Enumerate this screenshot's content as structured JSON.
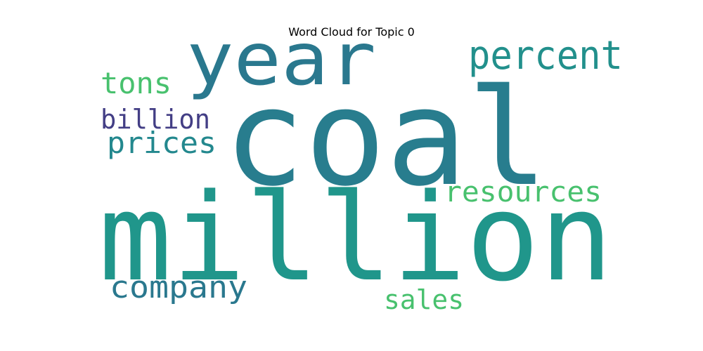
{
  "chart_data": {
    "type": "wordcloud",
    "title": "Word Cloud for Topic 0",
    "background": "#ffffff",
    "words": [
      {
        "text": "coal",
        "color": "#287d8e"
      },
      {
        "text": "million",
        "color": "#20968b"
      },
      {
        "text": "year",
        "color": "#2a788e"
      },
      {
        "text": "percent",
        "color": "#22908c"
      },
      {
        "text": "resources",
        "color": "#48c16e"
      },
      {
        "text": "company",
        "color": "#2a788e"
      },
      {
        "text": "prices",
        "color": "#23888e"
      },
      {
        "text": "tons",
        "color": "#48c16e"
      },
      {
        "text": "billion",
        "color": "#433e85"
      },
      {
        "text": "sales",
        "color": "#48c16e"
      }
    ]
  }
}
